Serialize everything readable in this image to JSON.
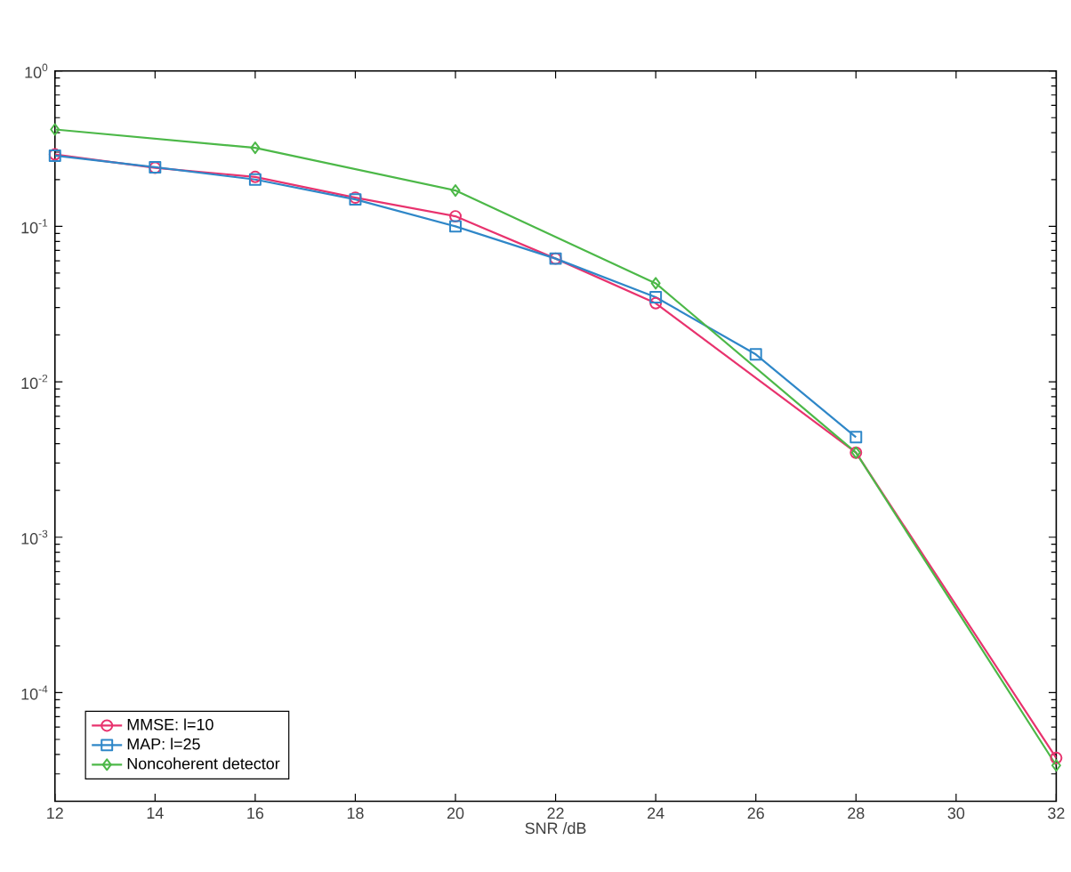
{
  "chart_data": {
    "type": "line",
    "xlabel": "SNR /dB",
    "log": "y",
    "grid": false,
    "legend": "bottom left",
    "xlim": [
      12,
      32
    ],
    "xticks": [
      12,
      14,
      16,
      18,
      20,
      22,
      24,
      26,
      28,
      30,
      32
    ],
    "ylim": [
      2e-05,
      1
    ],
    "yticks": [
      {
        "value": 0.0001,
        "label": "10$^{-4}$"
      },
      {
        "value": 0.001,
        "label": "10$^{-3}$"
      },
      {
        "value": 0.01,
        "label": "10$^{-2}$"
      },
      {
        "value": 0.1,
        "label": "10$^{-1}$"
      },
      {
        "value": 1,
        "label": "10$^{0}$"
      }
    ],
    "series": [
      {
        "name": "MMSE: l=10",
        "color": "#e8336e",
        "marker": "circle",
        "x": [
          12,
          14,
          16,
          18,
          20,
          22,
          24,
          28,
          32
        ],
        "values": [
          0.29,
          0.238,
          0.208,
          0.153,
          0.116,
          0.062,
          0.032,
          0.0035,
          3.8e-05
        ]
      },
      {
        "name": "MAP: l=25",
        "color": "#2f87c8",
        "marker": "square",
        "x": [
          12,
          14,
          16,
          18,
          20,
          22,
          24,
          26,
          28
        ],
        "values": [
          0.285,
          0.24,
          0.2,
          0.149,
          0.1,
          0.062,
          0.035,
          0.015,
          0.0044
        ]
      },
      {
        "name": "Noncoherent detector",
        "color": "#4cb848",
        "marker": "diamond",
        "x": [
          12,
          16,
          20,
          24,
          28,
          32
        ],
        "values": [
          0.42,
          0.32,
          0.17,
          0.043,
          0.0035,
          3.4e-05
        ]
      }
    ]
  }
}
